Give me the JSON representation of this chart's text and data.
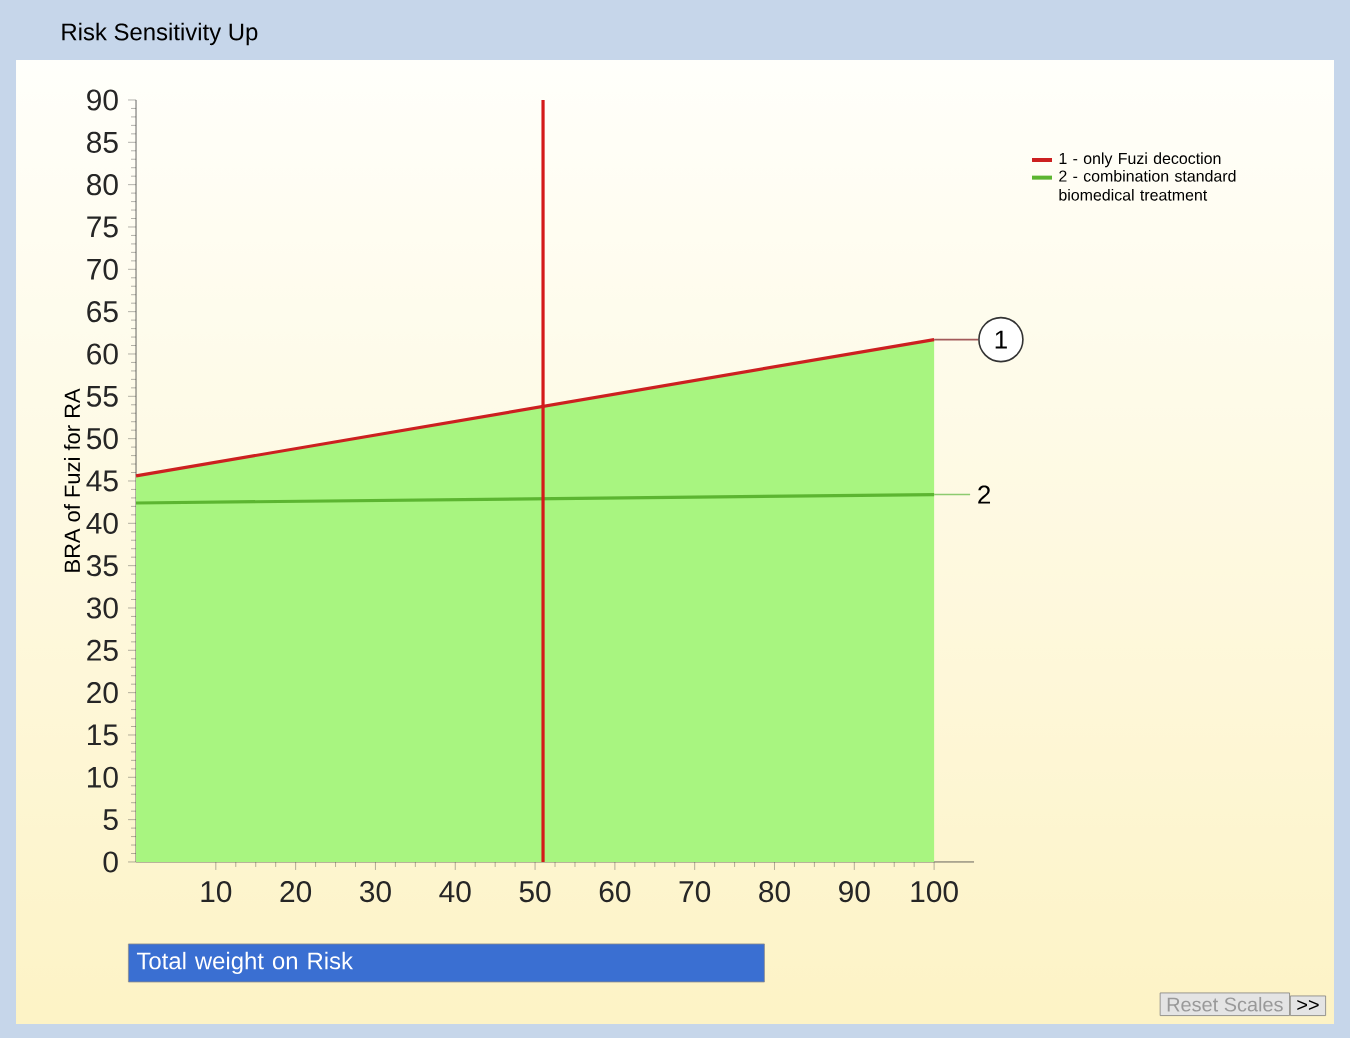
{
  "chart_data": {
    "type": "line",
    "title": "Risk Sensitivity Up",
    "xlabel": "Total weight on Risk",
    "ylabel": "BRA of Fuzi for RA",
    "xlim": [
      0,
      105
    ],
    "xticks": [
      10,
      20,
      30,
      40,
      50,
      60,
      70,
      80,
      90,
      100
    ],
    "ylim": [
      0,
      90
    ],
    "yticks": [
      0,
      5,
      10,
      15,
      20,
      25,
      30,
      35,
      40,
      45,
      50,
      55,
      60,
      65,
      70,
      75,
      80,
      85,
      90
    ],
    "x": [
      0,
      100
    ],
    "series": [
      {
        "type": "area",
        "color": "#a8f580",
        "values": [
          45.6,
          61.7
        ]
      },
      {
        "name": "1 - only Fuzi decoction",
        "color": "#cc2020",
        "values": [
          45.6,
          61.7
        ]
      },
      {
        "name": "2 - combination standard biomedical treatment",
        "color": "#5cb531",
        "values": [
          42.4,
          43.4
        ]
      }
    ],
    "ref_lines": [
      {
        "axis": "x",
        "value": 51,
        "color": "#d41a1a"
      }
    ],
    "legend": "top right",
    "annotations": [
      {
        "text": "1",
        "x": 100,
        "y": 61.7
      },
      {
        "text": "2",
        "x": 100,
        "y": 43.4
      },
      "Reset Scales",
      ">>"
    ]
  }
}
